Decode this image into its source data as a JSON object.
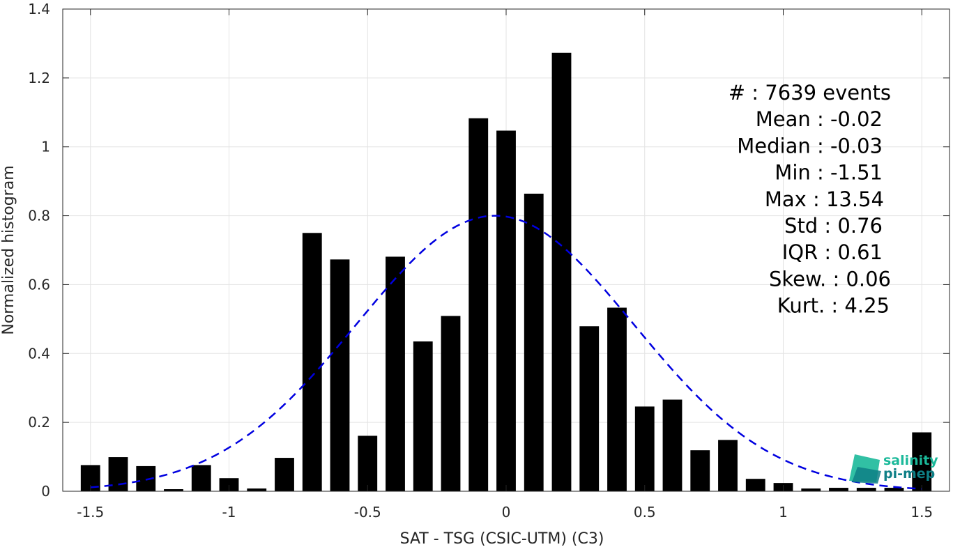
{
  "chart_data": {
    "type": "bar",
    "xlabel": "SAT - TSG (CSIC-UTM) (C3)",
    "ylabel": "Normalized histogram",
    "xlim": [
      -1.6,
      1.6
    ],
    "ylim": [
      0,
      1.4
    ],
    "x_ticks": [
      -1.5,
      -1,
      -0.5,
      0,
      0.5,
      1,
      1.5
    ],
    "x_tick_labels": [
      "-1.5",
      "-1",
      "-0.5",
      "0",
      "0.5",
      "1",
      "1.5"
    ],
    "y_ticks": [
      0,
      0.2,
      0.4,
      0.6,
      0.8,
      1,
      1.2,
      1.4
    ],
    "y_tick_labels": [
      "0",
      "0.2",
      "0.4",
      "0.6",
      "0.8",
      "1",
      "1.2",
      "1.4"
    ],
    "grid": true,
    "bar_color": "#000000",
    "bin_width": 0.1,
    "bin_centers": [
      -1.5,
      -1.4,
      -1.3,
      -1.2,
      -1.1,
      -1.0,
      -0.9,
      -0.8,
      -0.7,
      -0.6,
      -0.5,
      -0.4,
      -0.3,
      -0.2,
      -0.1,
      0.0,
      0.1,
      0.2,
      0.3,
      0.4,
      0.5,
      0.6,
      0.7,
      0.8,
      0.9,
      1.0,
      1.1,
      1.2,
      1.3,
      1.4,
      1.5
    ],
    "values": [
      0.076,
      0.099,
      0.073,
      0.006,
      0.076,
      0.038,
      0.008,
      0.097,
      0.75,
      0.673,
      0.161,
      0.681,
      0.435,
      0.509,
      1.083,
      1.047,
      0.864,
      1.273,
      0.479,
      0.533,
      0.246,
      0.266,
      0.119,
      0.149,
      0.036,
      0.024,
      0.008,
      0.01,
      0.01,
      0.01,
      0.171
    ],
    "fit": {
      "type": "gaussian",
      "mean": -0.04,
      "std": 0.5,
      "peak": 0.8,
      "x_range": [
        -1.5,
        1.5
      ],
      "color": "#0000e0",
      "style": "dashed"
    },
    "annotations": [
      {
        "label": "#",
        "sep": "  : ",
        "value": "7639 events"
      },
      {
        "label": "Mean",
        "sep": " : ",
        "value": "-0.02"
      },
      {
        "label": "Median",
        "sep": " : ",
        "value": "-0.03"
      },
      {
        "label": "Min",
        "sep": " : ",
        "value": "-1.51"
      },
      {
        "label": "Max",
        "sep": " : ",
        "value": "13.54"
      },
      {
        "label": "Std",
        "sep": " : ",
        "value": "0.76"
      },
      {
        "label": "IQR",
        "sep": " : ",
        "value": "0.61"
      },
      {
        "label": "Skew.",
        "sep": " : ",
        "value": "0.06"
      },
      {
        "label": "Kurt.",
        "sep": " : ",
        "value": "4.25"
      }
    ]
  },
  "logo": {
    "line1": "salinity",
    "line2": "pi-mep",
    "color1": "#1bb99a",
    "color2": "#0e7f86"
  }
}
